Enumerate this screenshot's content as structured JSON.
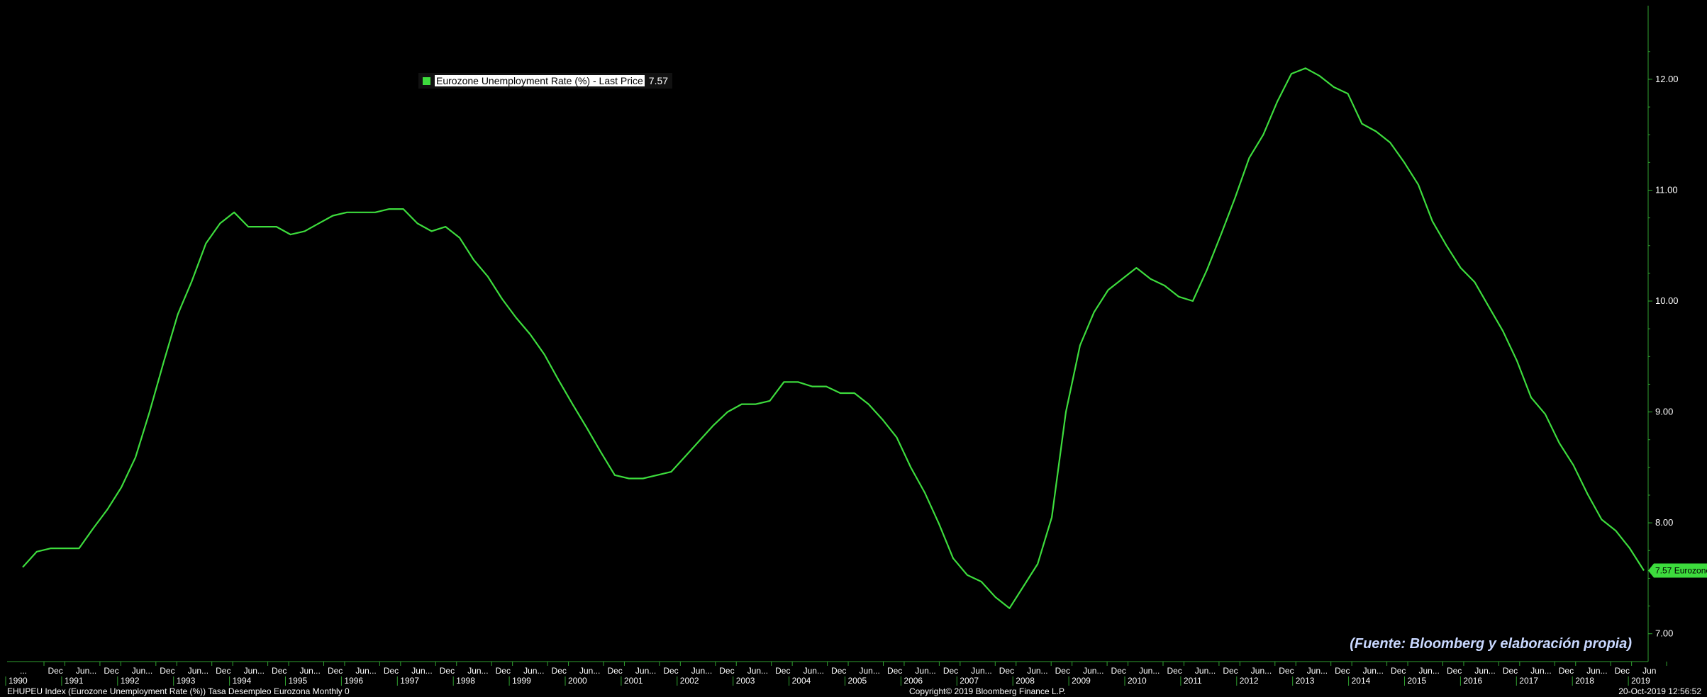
{
  "chart_data": {
    "type": "line",
    "title": "",
    "xlabel": "",
    "ylabel": "",
    "ylim": [
      6.8,
      12.6
    ],
    "yticks": [
      "7.00",
      "8.00",
      "9.00",
      "10.00",
      "11.00",
      "12.00"
    ],
    "xlim": [
      "1990-12",
      "2019-09"
    ],
    "grid": false,
    "legend_position": "top-left",
    "series": [
      {
        "name": "Eurozone Unemployment Rate (%) - Last Price",
        "color": "#3ddc3d",
        "x": [
          "1990-12",
          "1991-03",
          "1991-06",
          "1991-09",
          "1991-12",
          "1992-03",
          "1992-06",
          "1992-09",
          "1992-12",
          "1993-03",
          "1993-06",
          "1993-09",
          "1993-12",
          "1994-03",
          "1994-06",
          "1994-09",
          "1994-12",
          "1995-03",
          "1995-06",
          "1995-09",
          "1995-12",
          "1996-03",
          "1996-06",
          "1996-09",
          "1996-12",
          "1997-03",
          "1997-06",
          "1997-09",
          "1997-12",
          "1998-03",
          "1998-06",
          "1998-09",
          "1998-12",
          "1999-03",
          "1999-06",
          "1999-09",
          "1999-12",
          "2000-03",
          "2000-06",
          "2000-09",
          "2000-12",
          "2001-03",
          "2001-06",
          "2001-09",
          "2001-12",
          "2002-03",
          "2002-06",
          "2002-09",
          "2002-12",
          "2003-03",
          "2003-06",
          "2003-09",
          "2003-12",
          "2004-03",
          "2004-06",
          "2004-09",
          "2004-12",
          "2005-03",
          "2005-06",
          "2005-09",
          "2005-12",
          "2006-03",
          "2006-06",
          "2006-09",
          "2006-12",
          "2007-03",
          "2007-06",
          "2007-09",
          "2007-12",
          "2008-03",
          "2008-06",
          "2008-09",
          "2008-12",
          "2009-03",
          "2009-06",
          "2009-09",
          "2009-12",
          "2010-03",
          "2010-06",
          "2010-09",
          "2010-12",
          "2011-03",
          "2011-06",
          "2011-09",
          "2011-12",
          "2012-03",
          "2012-06",
          "2012-09",
          "2012-12",
          "2013-03",
          "2013-06",
          "2013-09",
          "2013-12",
          "2014-03",
          "2014-06",
          "2014-09",
          "2014-12",
          "2015-03",
          "2015-06",
          "2015-09",
          "2015-12",
          "2016-03",
          "2016-06",
          "2016-09",
          "2016-12",
          "2017-03",
          "2017-06",
          "2017-09",
          "2017-12",
          "2018-03",
          "2018-06",
          "2018-09",
          "2018-12",
          "2019-03",
          "2019-06",
          "2019-09"
        ],
        "values": [
          7.6,
          7.74,
          7.77,
          7.77,
          7.77,
          7.95,
          8.12,
          8.32,
          8.59,
          9.0,
          9.45,
          9.88,
          10.18,
          10.52,
          10.7,
          10.8,
          10.67,
          10.67,
          10.67,
          10.6,
          10.63,
          10.7,
          10.77,
          10.8,
          10.8,
          10.8,
          10.83,
          10.83,
          10.7,
          10.63,
          10.67,
          10.57,
          10.37,
          10.22,
          10.02,
          9.85,
          9.7,
          9.52,
          9.29,
          9.07,
          8.86,
          8.64,
          8.43,
          8.4,
          8.4,
          8.43,
          8.46,
          8.6,
          8.74,
          8.88,
          9.0,
          9.07,
          9.07,
          9.1,
          9.27,
          9.27,
          9.23,
          9.23,
          9.17,
          9.17,
          9.07,
          8.93,
          8.77,
          8.5,
          8.27,
          7.99,
          7.68,
          7.53,
          7.47,
          7.33,
          7.23,
          7.43,
          7.63,
          8.05,
          9.0,
          9.6,
          9.9,
          10.1,
          10.2,
          10.3,
          10.2,
          10.14,
          10.04,
          10.0,
          10.28,
          10.6,
          10.93,
          11.29,
          11.5,
          11.8,
          12.05,
          12.1,
          12.03,
          11.93,
          11.87,
          11.6,
          11.53,
          11.43,
          11.25,
          11.05,
          10.72,
          10.5,
          10.3,
          10.17,
          9.95,
          9.73,
          9.46,
          9.13,
          8.98,
          8.72,
          8.52,
          8.26,
          8.03,
          7.93,
          7.77,
          7.57
        ]
      }
    ],
    "x_tick_labels": {
      "month_row": [
        "...",
        "Dec",
        "Jun...",
        "Dec",
        "Jun...",
        "Dec",
        "Jun...",
        "Dec",
        "Jun...",
        "Dec",
        "Jun...",
        "Dec",
        "Jun...",
        "Dec",
        "Jun...",
        "Dec",
        "Jun...",
        "Dec",
        "Jun...",
        "Dec",
        "Jun...",
        "Dec",
        "Jun...",
        "Dec",
        "Jun...",
        "Dec",
        "Jun...",
        "Dec",
        "Jun...",
        "Dec",
        "Jun...",
        "Dec",
        "Jun...",
        "Dec",
        "Jun...",
        "Dec",
        "Jun...",
        "Dec",
        "Jun...",
        "Dec",
        "Jun...",
        "Dec",
        "Jun...",
        "Dec",
        "Jun...",
        "Dec",
        "Jun...",
        "Dec",
        "Jun...",
        "Dec",
        "Jun...",
        "Dec",
        "Jun...",
        "Dec",
        "Jun...",
        "Dec",
        "Jun...",
        "Dec",
        "Jun"
      ],
      "year_row": [
        "1990",
        "1991",
        "1992",
        "1993",
        "1994",
        "1995",
        "1996",
        "1997",
        "1998",
        "1999",
        "2000",
        "2001",
        "2002",
        "2003",
        "2004",
        "2005",
        "2006",
        "2007",
        "2008",
        "2009",
        "2010",
        "2011",
        "2012",
        "2013",
        "2014",
        "2015",
        "2016",
        "2017",
        "2018",
        "2019"
      ]
    },
    "last_value_tag": "7.57 Eurozone",
    "annotation": "(Fuente: Bloomberg y elaboración propia)"
  },
  "legend": {
    "series_label": "Eurozone Unemployment Rate (%) - Last Price",
    "last_value": "7.57"
  },
  "footer": {
    "left": "EHUPEU Index (Eurozone Unemployment Rate (%)) Tasa Desempleo Eurozona  Monthly 0",
    "center": "Copyright© 2019 Bloomberg Finance L.P.",
    "right": "20-Oct-2019 12:56:52"
  },
  "colors": {
    "background": "#000000",
    "line": "#3ddc3d",
    "axis": "#2fa02f",
    "source_text": "#c9d8ff"
  }
}
